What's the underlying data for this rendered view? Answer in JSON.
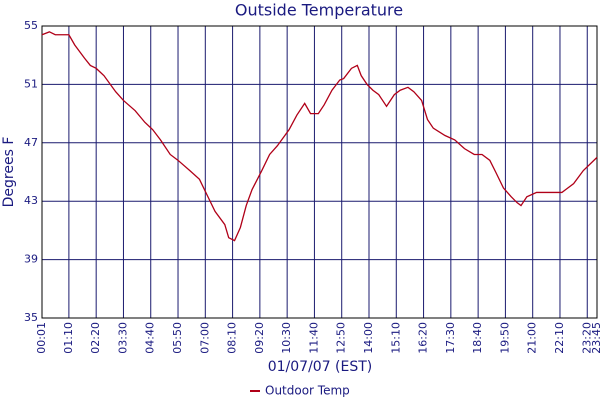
{
  "chart_data": {
    "type": "line",
    "title": "Outside Temperature",
    "x_label": "01/07/07 (EST)",
    "y_label": "Degrees F",
    "x": [
      "00:01",
      "00:20",
      "00:35",
      "01:10",
      "01:25",
      "01:50",
      "02:05",
      "02:20",
      "02:40",
      "03:10",
      "03:30",
      "04:00",
      "04:25",
      "04:45",
      "05:05",
      "05:30",
      "05:50",
      "06:20",
      "06:45",
      "07:05",
      "07:25",
      "07:50",
      "08:00",
      "08:15",
      "08:30",
      "08:45",
      "09:00",
      "09:25",
      "09:45",
      "10:05",
      "10:35",
      "10:55",
      "11:15",
      "11:30",
      "11:50",
      "12:05",
      "12:25",
      "12:45",
      "12:55",
      "13:15",
      "13:30",
      "13:40",
      "13:55",
      "14:10",
      "14:25",
      "14:45",
      "15:05",
      "15:20",
      "15:40",
      "15:55",
      "16:15",
      "16:30",
      "16:45",
      "17:15",
      "17:40",
      "18:05",
      "18:30",
      "18:50",
      "19:10",
      "19:25",
      "19:45",
      "20:05",
      "20:20",
      "20:30",
      "20:45",
      "21:10",
      "21:35",
      "22:15",
      "22:25",
      "22:45",
      "23:10",
      "23:45"
    ],
    "series": [
      {
        "name": "Outdoor Temp",
        "color": "#b00018",
        "values": [
          54.4,
          54.6,
          54.4,
          54.4,
          53.7,
          52.8,
          52.3,
          52.1,
          51.6,
          50.5,
          49.9,
          49.2,
          48.4,
          47.9,
          47.2,
          46.2,
          45.8,
          45.1,
          44.5,
          43.4,
          42.3,
          41.4,
          40.5,
          40.3,
          41.2,
          42.7,
          43.8,
          45.1,
          46.2,
          46.8,
          47.9,
          48.9,
          49.7,
          49.0,
          49.0,
          49.6,
          50.6,
          51.3,
          51.4,
          52.1,
          52.3,
          51.6,
          51.0,
          50.6,
          50.3,
          49.5,
          50.3,
          50.6,
          50.8,
          50.5,
          49.9,
          48.6,
          48.0,
          47.5,
          47.2,
          46.6,
          46.2,
          46.2,
          45.8,
          45.0,
          43.9,
          43.3,
          42.9,
          42.7,
          43.3,
          43.6,
          43.6,
          43.6,
          43.8,
          44.2,
          45.1,
          46.0
        ]
      }
    ],
    "xlim": [
      "00:01",
      "23:45"
    ],
    "xticks": [
      "00:01",
      "01:10",
      "02:20",
      "03:30",
      "04:40",
      "05:50",
      "07:00",
      "08:10",
      "09:20",
      "10:30",
      "11:40",
      "12:50",
      "14:00",
      "15:10",
      "16:20",
      "17:30",
      "18:40",
      "19:50",
      "21:00",
      "22:10",
      "23:20",
      "23:45"
    ],
    "ylim": [
      35,
      55
    ],
    "yticks": [
      35,
      39,
      43,
      47,
      51,
      55
    ],
    "grid": true,
    "legend": "bottom"
  }
}
